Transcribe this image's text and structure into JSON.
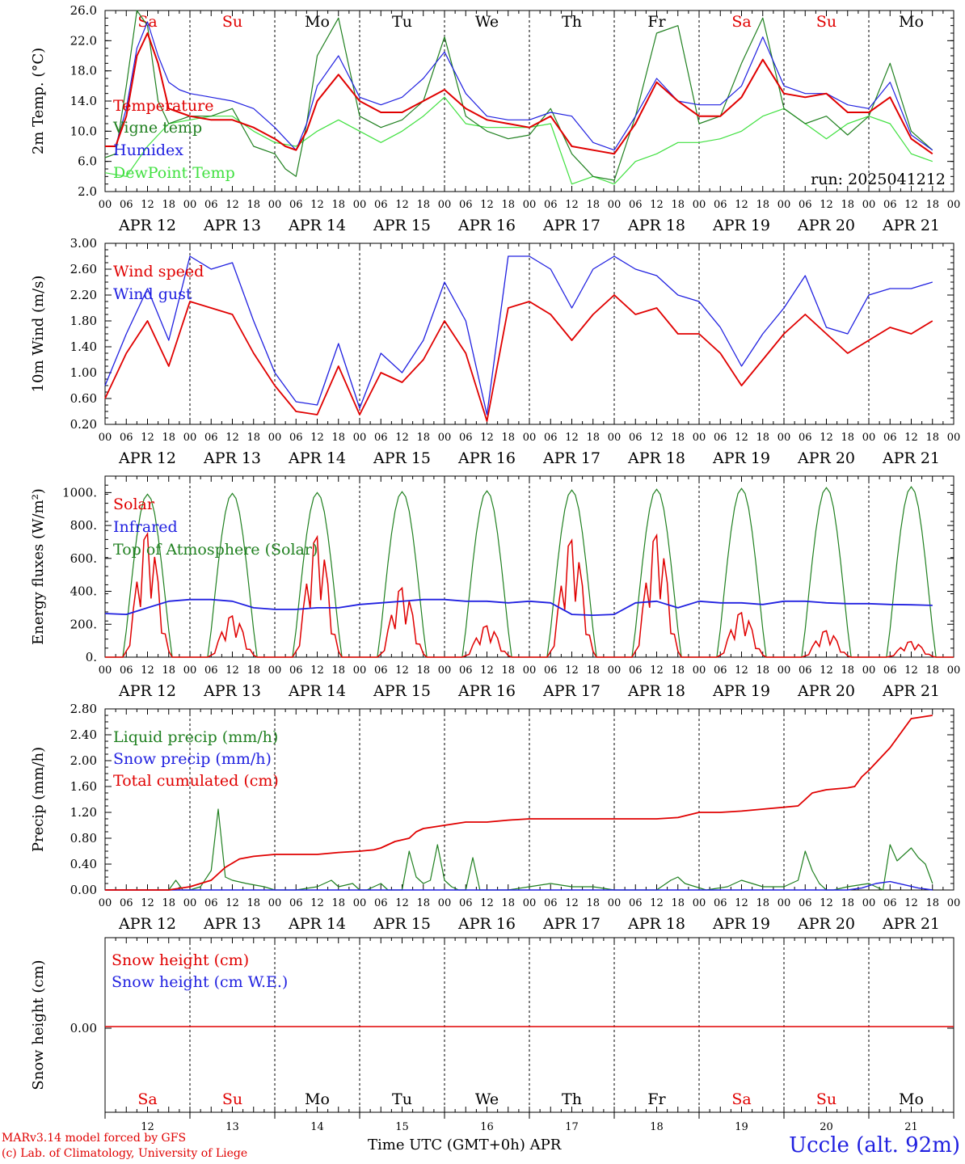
{
  "day_labels": [
    {
      "label": "Sa",
      "weekend": true
    },
    {
      "label": "Su",
      "weekend": true
    },
    {
      "label": "Mo",
      "weekend": false
    },
    {
      "label": "Tu",
      "weekend": false
    },
    {
      "label": "We",
      "weekend": false
    },
    {
      "label": "Th",
      "weekend": false
    },
    {
      "label": "Fr",
      "weekend": false
    },
    {
      "label": "Sa",
      "weekend": true
    },
    {
      "label": "Su",
      "weekend": true
    },
    {
      "label": "Mo",
      "weekend": false
    }
  ],
  "dates": [
    "APR 12",
    "APR 13",
    "APR 14",
    "APR 15",
    "APR 16",
    "APR 17",
    "APR 18",
    "APR 19",
    "APR 20",
    "APR 21"
  ],
  "day_numbers": [
    "12",
    "13",
    "14",
    "15",
    "16",
    "17",
    "18",
    "19",
    "20",
    "21"
  ],
  "hour_ticks": [
    "00",
    "06",
    "12",
    "18"
  ],
  "last_hour_tick": "00",
  "colors": {
    "red": "#e00000",
    "green": "#208020",
    "blue": "#2020e0",
    "light_green": "#40e040",
    "weekend": "#e00000"
  },
  "chart_data": [
    {
      "type": "line",
      "ylabel": "2m Temp. (°C)",
      "ylim": [
        2.0,
        26.0
      ],
      "yticks": [
        "2.0",
        "6.0",
        "10.0",
        "14.0",
        "18.0",
        "22.0",
        "26.0"
      ],
      "annotation": "run: 2025041212",
      "series": [
        {
          "name": "Temperature",
          "color": "red",
          "x": [
            0,
            3,
            6,
            9,
            12,
            15,
            18,
            21,
            24,
            30,
            36,
            42,
            48,
            51,
            54,
            57,
            60,
            66,
            72,
            78,
            84,
            90,
            96,
            102,
            108,
            114,
            120,
            126,
            132,
            138,
            144,
            150,
            156,
            162,
            168,
            174,
            180,
            186,
            192,
            198,
            204,
            210,
            216,
            222,
            228,
            234
          ],
          "values": [
            8,
            8,
            12,
            20,
            23,
            19,
            13,
            12.5,
            12,
            11.5,
            11.5,
            10.5,
            9,
            8,
            7.5,
            10,
            14,
            17.5,
            14,
            12.5,
            12.5,
            14,
            15.5,
            13,
            11.5,
            11,
            10.5,
            12,
            8,
            7.5,
            7,
            11,
            16.5,
            14,
            12,
            12,
            14.5,
            19.5,
            15,
            14.5,
            15,
            12.5,
            12.5,
            14.5,
            9,
            7
          ]
        },
        {
          "name": "Vigne temp",
          "color": "green",
          "x": [
            0,
            3,
            6,
            9,
            12,
            15,
            18,
            21,
            24,
            30,
            36,
            42,
            48,
            51,
            54,
            57,
            60,
            66,
            72,
            78,
            84,
            90,
            96,
            102,
            108,
            114,
            120,
            126,
            132,
            138,
            144,
            150,
            156,
            162,
            168,
            174,
            180,
            186,
            192,
            198,
            204,
            210,
            216,
            222,
            228,
            234
          ],
          "values": [
            6.5,
            7,
            16,
            26,
            24,
            14,
            11,
            11.5,
            12,
            12,
            13,
            8,
            7,
            5,
            4,
            11,
            20,
            25,
            12,
            10.5,
            11.5,
            14,
            22.5,
            12,
            10,
            9,
            9.5,
            13,
            7,
            4,
            3.5,
            12,
            23,
            24,
            11,
            12,
            19,
            25,
            13,
            11,
            12,
            9.5,
            12,
            19,
            10,
            7.5
          ]
        },
        {
          "name": "Humidex",
          "color": "blue",
          "x": [
            0,
            3,
            6,
            9,
            12,
            15,
            18,
            21,
            24,
            30,
            36,
            42,
            48,
            51,
            54,
            57,
            60,
            66,
            72,
            78,
            84,
            90,
            96,
            102,
            108,
            114,
            120,
            126,
            132,
            138,
            144,
            150,
            156,
            162,
            168,
            174,
            180,
            186,
            192,
            198,
            204,
            210,
            216,
            222,
            228,
            234
          ],
          "values": [
            8,
            8,
            13,
            21,
            24.5,
            20,
            16.5,
            15.5,
            15,
            14.5,
            14,
            13,
            10.5,
            9,
            7.5,
            11,
            16,
            20,
            14.5,
            13.5,
            14.5,
            17,
            20.5,
            15,
            12,
            11.5,
            11.5,
            12.5,
            12,
            8.5,
            7.5,
            12,
            17,
            14,
            13.5,
            13.5,
            16,
            22.5,
            16,
            15,
            15,
            13.5,
            13,
            16.5,
            9.5,
            7.5
          ]
        },
        {
          "name": "DewPoint Temp",
          "color": "light_green",
          "x": [
            0,
            6,
            12,
            18,
            24,
            30,
            36,
            42,
            48,
            54,
            60,
            66,
            72,
            78,
            84,
            90,
            96,
            102,
            108,
            114,
            120,
            126,
            132,
            138,
            144,
            150,
            156,
            162,
            168,
            174,
            180,
            186,
            192,
            198,
            204,
            210,
            216,
            222,
            228,
            234
          ],
          "values": [
            4.5,
            4,
            8,
            11,
            11.5,
            12,
            12,
            10,
            8.5,
            8,
            10,
            11.5,
            10,
            8.5,
            10,
            12,
            14.5,
            11,
            10.5,
            10.5,
            10.5,
            11,
            3,
            4,
            3,
            6,
            7,
            8.5,
            8.5,
            9,
            10,
            12,
            13,
            11,
            9,
            11,
            12,
            11,
            7,
            6
          ]
        }
      ]
    },
    {
      "type": "line",
      "ylabel": "10m Wind (m/s)",
      "ylim": [
        0.2,
        3.0
      ],
      "yticks": [
        "0.20",
        "0.60",
        "1.00",
        "1.40",
        "1.80",
        "2.20",
        "2.60",
        "3.00"
      ],
      "series": [
        {
          "name": "Wind speed",
          "color": "red",
          "x": [
            0,
            6,
            12,
            18,
            24,
            30,
            36,
            42,
            48,
            54,
            60,
            66,
            72,
            78,
            84,
            90,
            96,
            102,
            108,
            114,
            120,
            126,
            132,
            138,
            144,
            150,
            156,
            162,
            168,
            174,
            180,
            186,
            192,
            198,
            204,
            210,
            216,
            222,
            228,
            234
          ],
          "values": [
            0.6,
            1.3,
            1.8,
            1.1,
            2.1,
            2.0,
            1.9,
            1.3,
            0.8,
            0.4,
            0.35,
            1.1,
            0.35,
            1.0,
            0.85,
            1.2,
            1.8,
            1.3,
            0.25,
            2.0,
            2.1,
            1.9,
            1.5,
            1.9,
            2.2,
            1.9,
            2.0,
            1.6,
            1.6,
            1.3,
            0.8,
            1.2,
            1.6,
            1.9,
            1.6,
            1.3,
            1.5,
            1.7,
            1.6,
            1.8
          ]
        },
        {
          "name": "Wind gust",
          "color": "blue",
          "x": [
            0,
            6,
            12,
            18,
            24,
            30,
            36,
            42,
            48,
            54,
            60,
            66,
            72,
            78,
            84,
            90,
            96,
            102,
            108,
            114,
            120,
            126,
            132,
            138,
            144,
            150,
            156,
            162,
            168,
            174,
            180,
            186,
            192,
            198,
            204,
            210,
            216,
            222,
            228,
            234
          ],
          "values": [
            0.8,
            1.6,
            2.3,
            1.5,
            2.8,
            2.6,
            2.7,
            1.8,
            1.0,
            0.55,
            0.5,
            1.45,
            0.45,
            1.3,
            1.0,
            1.5,
            2.4,
            1.8,
            0.35,
            2.8,
            2.8,
            2.6,
            2.0,
            2.6,
            2.8,
            2.6,
            2.5,
            2.2,
            2.1,
            1.7,
            1.1,
            1.6,
            2.0,
            2.5,
            1.7,
            1.6,
            2.2,
            2.3,
            2.3,
            2.4
          ]
        }
      ]
    },
    {
      "type": "line",
      "ylabel": "Energy fluxes (W/m²)",
      "ylim": [
        0,
        1100
      ],
      "yticks": [
        "0.",
        "200.",
        "400.",
        "600.",
        "800.",
        "1000."
      ],
      "series": [
        {
          "name": "Solar",
          "color": "red",
          "peaks": [
            750,
            250,
            730,
            420,
            190,
            710,
            740,
            270,
            160,
            95
          ]
        },
        {
          "name": "Infrared",
          "color": "blue",
          "x": [
            0,
            6,
            12,
            18,
            24,
            30,
            36,
            42,
            48,
            54,
            60,
            66,
            72,
            78,
            84,
            90,
            96,
            102,
            108,
            114,
            120,
            126,
            132,
            138,
            144,
            150,
            156,
            162,
            168,
            174,
            180,
            186,
            192,
            198,
            204,
            210,
            216,
            222,
            228,
            234
          ],
          "values": [
            265,
            260,
            300,
            340,
            350,
            350,
            340,
            300,
            290,
            290,
            300,
            300,
            320,
            330,
            340,
            350,
            350,
            340,
            340,
            330,
            340,
            330,
            260,
            255,
            260,
            330,
            340,
            300,
            340,
            330,
            330,
            320,
            340,
            340,
            330,
            325,
            325,
            320,
            318,
            315
          ]
        },
        {
          "name": "Top of Atmosphere (Solar)",
          "color": "green",
          "peaks": [
            990,
            995,
            1000,
            1005,
            1010,
            1015,
            1020,
            1025,
            1030,
            1035
          ]
        }
      ]
    },
    {
      "type": "line",
      "ylabel": "Precip (mm/h)",
      "ylim": [
        0,
        2.8
      ],
      "yticks": [
        "0.00",
        "0.40",
        "0.80",
        "1.20",
        "1.60",
        "2.00",
        "2.40",
        "2.80"
      ],
      "series": [
        {
          "name": "Liquid precip (mm/h)",
          "color": "green",
          "x": [
            0,
            18,
            20,
            22,
            24,
            27,
            30,
            32,
            34,
            36,
            40,
            45,
            48,
            54,
            60,
            64,
            66,
            70,
            72,
            74,
            76,
            78,
            80,
            82,
            84,
            86,
            88,
            90,
            92,
            94,
            96,
            98,
            100,
            102,
            104,
            106,
            108,
            110,
            112,
            114,
            120,
            126,
            132,
            138,
            144,
            150,
            156,
            160,
            162,
            164,
            170,
            176,
            180,
            186,
            192,
            196,
            198,
            200,
            202,
            204,
            206,
            210,
            216,
            220,
            222,
            224,
            226,
            228,
            230,
            232,
            234
          ],
          "values": [
            0,
            0,
            0.15,
            0,
            0,
            0.05,
            0.3,
            1.25,
            0.2,
            0.15,
            0.1,
            0.05,
            0,
            0,
            0.05,
            0.15,
            0.05,
            0.1,
            0,
            0,
            0.05,
            0.1,
            0,
            0,
            0,
            0.6,
            0.2,
            0.1,
            0.15,
            0.7,
            0.15,
            0.05,
            0,
            0,
            0.5,
            0,
            0,
            0,
            0,
            0,
            0.05,
            0.1,
            0.05,
            0.05,
            0,
            0,
            0,
            0.15,
            0.2,
            0.1,
            0,
            0.05,
            0.15,
            0.05,
            0.05,
            0.15,
            0.6,
            0.3,
            0.1,
            0,
            0,
            0.05,
            0.1,
            0,
            0.7,
            0.45,
            0.55,
            0.65,
            0.5,
            0.4,
            0.1
          ]
        },
        {
          "name": "Snow precip (mm/h)",
          "color": "blue",
          "x": [
            0,
            210,
            214,
            218,
            222,
            226,
            230,
            234
          ],
          "values": [
            0,
            0,
            0.03,
            0.1,
            0.13,
            0.08,
            0.03,
            0
          ]
        },
        {
          "name": "Total cumulated (cm)",
          "color": "red",
          "x": [
            0,
            18,
            24,
            30,
            34,
            38,
            42,
            48,
            54,
            60,
            66,
            72,
            76,
            78,
            82,
            86,
            88,
            90,
            96,
            102,
            108,
            114,
            120,
            126,
            132,
            138,
            144,
            150,
            156,
            162,
            168,
            174,
            180,
            186,
            192,
            196,
            198,
            200,
            204,
            210,
            212,
            214,
            216,
            222,
            228,
            234
          ],
          "values": [
            0,
            0,
            0.05,
            0.15,
            0.35,
            0.48,
            0.52,
            0.55,
            0.55,
            0.55,
            0.58,
            0.6,
            0.62,
            0.65,
            0.75,
            0.8,
            0.9,
            0.95,
            1.0,
            1.05,
            1.05,
            1.08,
            1.1,
            1.1,
            1.1,
            1.1,
            1.1,
            1.1,
            1.1,
            1.12,
            1.2,
            1.2,
            1.22,
            1.25,
            1.28,
            1.3,
            1.4,
            1.5,
            1.55,
            1.58,
            1.6,
            1.75,
            1.85,
            2.2,
            2.65,
            2.7
          ]
        }
      ]
    },
    {
      "type": "line",
      "ylabel": "Snow height (cm)",
      "yticks": [
        "0.00"
      ],
      "series": [
        {
          "name": "Snow height (cm)",
          "color": "red",
          "x": [
            0,
            234
          ],
          "values": [
            0,
            0
          ]
        },
        {
          "name": "Snow height (cm W.E.)",
          "color": "blue",
          "x": [
            0,
            234
          ],
          "values": [
            0,
            0
          ]
        }
      ]
    }
  ],
  "footer": {
    "credit_line1": "MARv3.14 model forced by GFS",
    "credit_line2": "(c) Lab. of Climatology, University of Liege",
    "xaxis_title": "Time UTC (GMT+0h) APR",
    "station": "Uccle (alt. 92m)"
  }
}
